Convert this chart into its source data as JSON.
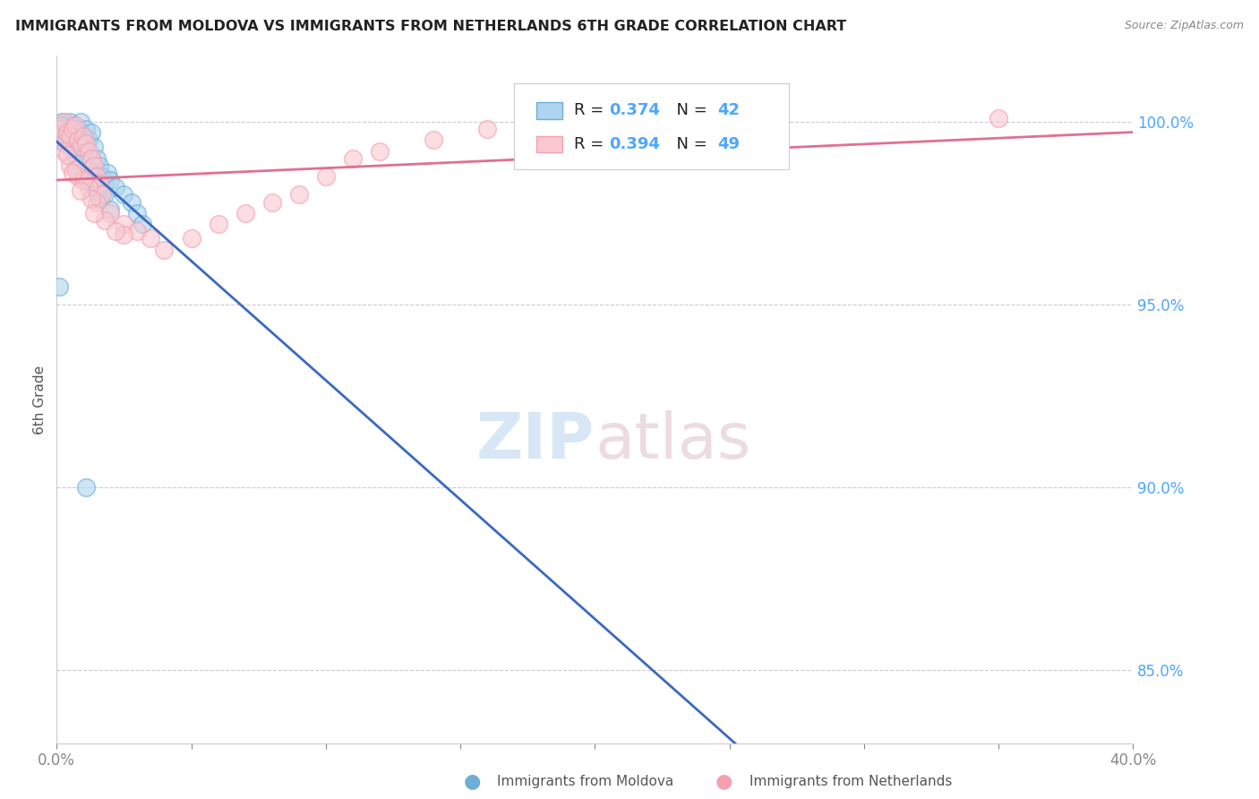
{
  "title": "IMMIGRANTS FROM MOLDOVA VS IMMIGRANTS FROM NETHERLANDS 6TH GRADE CORRELATION CHART",
  "source": "Source: ZipAtlas.com",
  "ylabel": "6th Grade",
  "xlim": [
    0.0,
    0.4
  ],
  "ylim": [
    83.0,
    101.8
  ],
  "moldova_color": "#6baed6",
  "moldova_face_color": "#aed4f0",
  "netherlands_color": "#f4a0b0",
  "netherlands_face_color": "#f9c8d0",
  "moldova_line_color": "#3a6abf",
  "netherlands_line_color": "#e07090",
  "moldova_R": "0.374",
  "moldova_N": "42",
  "netherlands_R": "0.394",
  "netherlands_N": "49",
  "legend_label_moldova": "Immigrants from Moldova",
  "legend_label_netherlands": "Immigrants from Netherlands",
  "ytick_color": "#4da6ff",
  "ytick_positions": [
    85.0,
    90.0,
    95.0,
    100.0
  ],
  "ytick_labels": [
    "85.0%",
    "90.0%",
    "95.0%",
    "100.0%"
  ],
  "moldova_x": [
    0.001,
    0.002,
    0.003,
    0.004,
    0.005,
    0.006,
    0.007,
    0.008,
    0.009,
    0.01,
    0.011,
    0.012,
    0.013,
    0.014,
    0.015,
    0.016,
    0.017,
    0.018,
    0.019,
    0.02,
    0.022,
    0.025,
    0.028,
    0.03,
    0.032,
    0.01,
    0.013,
    0.016,
    0.008,
    0.006,
    0.004,
    0.007,
    0.009,
    0.005,
    0.012,
    0.015,
    0.02,
    0.003,
    0.002,
    0.018,
    0.001,
    0.011
  ],
  "moldova_y": [
    99.8,
    100.0,
    99.5,
    99.8,
    100.0,
    99.9,
    99.7,
    99.8,
    100.0,
    99.6,
    99.8,
    99.5,
    99.7,
    99.3,
    99.0,
    98.8,
    98.5,
    98.3,
    98.6,
    98.4,
    98.2,
    98.0,
    97.8,
    97.5,
    97.2,
    98.5,
    98.3,
    97.9,
    99.2,
    99.4,
    99.6,
    99.1,
    98.9,
    99.3,
    98.7,
    98.1,
    97.6,
    99.4,
    99.9,
    98.0,
    95.5,
    90.0
  ],
  "netherlands_x": [
    0.001,
    0.002,
    0.003,
    0.004,
    0.005,
    0.006,
    0.007,
    0.008,
    0.009,
    0.01,
    0.011,
    0.012,
    0.013,
    0.014,
    0.015,
    0.016,
    0.017,
    0.003,
    0.005,
    0.008,
    0.012,
    0.015,
    0.02,
    0.025,
    0.03,
    0.035,
    0.04,
    0.05,
    0.06,
    0.07,
    0.08,
    0.09,
    0.1,
    0.11,
    0.12,
    0.14,
    0.16,
    0.18,
    0.007,
    0.01,
    0.013,
    0.018,
    0.025,
    0.006,
    0.35,
    0.004,
    0.009,
    0.022,
    0.014
  ],
  "netherlands_y": [
    99.5,
    99.8,
    100.0,
    99.7,
    99.6,
    99.8,
    99.9,
    99.5,
    99.3,
    99.6,
    99.4,
    99.2,
    99.0,
    98.8,
    98.5,
    98.3,
    98.0,
    99.2,
    98.8,
    98.5,
    98.2,
    97.8,
    97.5,
    97.2,
    97.0,
    96.8,
    96.5,
    96.8,
    97.2,
    97.5,
    97.8,
    98.0,
    98.5,
    99.0,
    99.2,
    99.5,
    99.8,
    100.0,
    98.7,
    98.4,
    97.9,
    97.3,
    96.9,
    98.6,
    100.1,
    99.1,
    98.1,
    97.0,
    97.5
  ]
}
